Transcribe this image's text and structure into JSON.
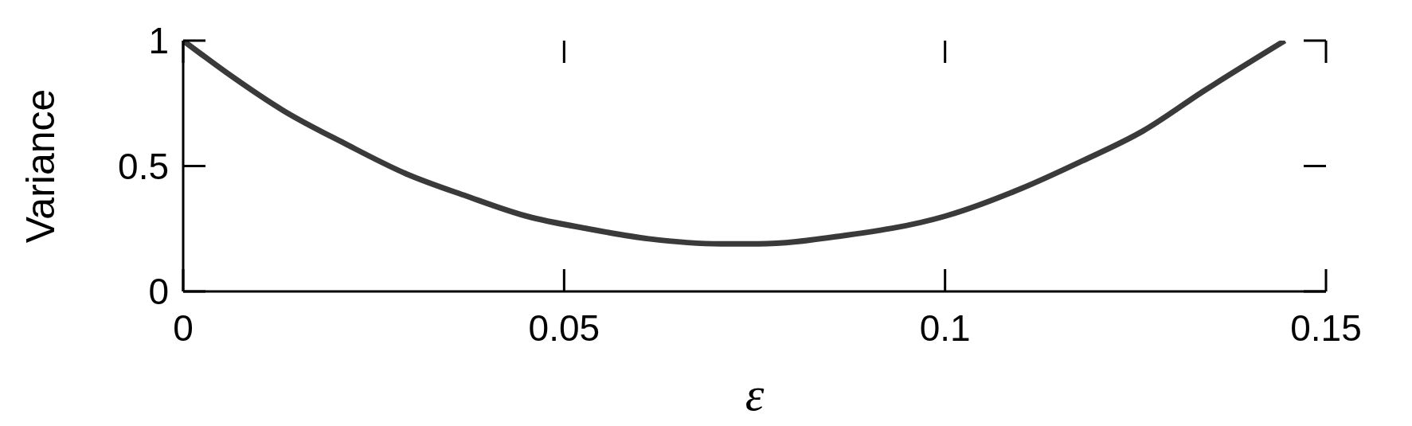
{
  "chart_data": {
    "type": "line",
    "xlabel": "ε",
    "ylabel": "Variance",
    "x": [
      0,
      0.0058,
      0.0132,
      0.0212,
      0.0292,
      0.0372,
      0.0451,
      0.0531,
      0.0611,
      0.0706,
      0.0755,
      0.0861,
      0.1,
      0.11,
      0.118,
      0.126,
      0.134,
      0.1446
    ],
    "series": [
      {
        "color": "#3a3a3a",
        "values": [
          1,
          0.87,
          0.72,
          0.59,
          0.47,
          0.38,
          0.3,
          0.25,
          0.21,
          0.19,
          0.19,
          0.22,
          0.3,
          0.41,
          0.52,
          0.64,
          0.8,
          1
        ]
      }
    ],
    "xlim": [
      0,
      0.15
    ],
    "xticks": [
      0,
      0.05,
      0.1,
      0.15
    ],
    "ylim": [
      0,
      1
    ],
    "yticks": [
      0,
      0.5,
      1
    ],
    "grid": false,
    "legend": false,
    "marker": "none",
    "line_style": "solid"
  }
}
